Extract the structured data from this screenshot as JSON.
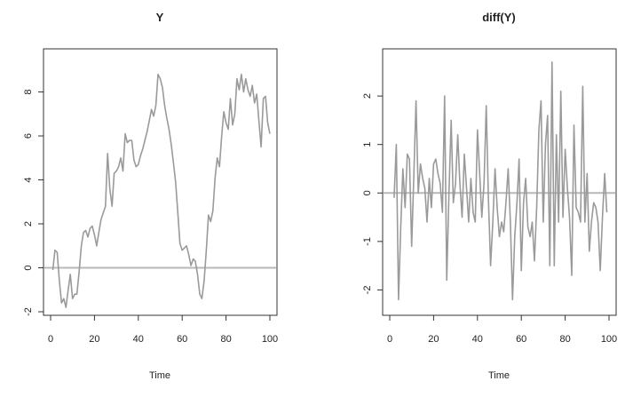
{
  "chart_data": [
    {
      "type": "line",
      "title": "Y",
      "xlabel": "Time",
      "ylabel": "",
      "xlim": [
        0,
        100
      ],
      "ylim": [
        -2,
        9.8
      ],
      "xticks": [
        0,
        20,
        40,
        60,
        80,
        100
      ],
      "yticks": [
        -2,
        0,
        2,
        4,
        6,
        8
      ],
      "reference_line_y": 0,
      "series": [
        {
          "color": "#9a9a9a",
          "x": [
            1,
            2,
            3,
            4,
            5,
            6,
            7,
            8,
            9,
            10,
            11,
            12,
            13,
            14,
            15,
            16,
            17,
            18,
            19,
            20,
            21,
            22,
            23,
            24,
            25,
            26,
            27,
            28,
            29,
            30,
            31,
            32,
            33,
            34,
            35,
            36,
            37,
            38,
            39,
            40,
            41,
            42,
            43,
            44,
            45,
            46,
            47,
            48,
            49,
            50,
            51,
            52,
            53,
            54,
            55,
            56,
            57,
            58,
            59,
            60,
            61,
            62,
            63,
            64,
            65,
            66,
            67,
            68,
            69,
            70,
            71,
            72,
            73,
            74,
            75,
            76,
            77,
            78,
            79,
            80,
            81,
            82,
            83,
            84,
            85,
            86,
            87,
            88,
            89,
            90,
            91,
            92,
            93,
            94,
            95,
            96,
            97,
            98,
            99,
            100
          ],
          "values": [
            -0.1,
            0.8,
            0.7,
            -0.6,
            -1.6,
            -1.4,
            -1.8,
            -1.0,
            -0.3,
            -1.4,
            -1.2,
            -1.2,
            -0.2,
            1.0,
            1.6,
            1.7,
            1.4,
            1.8,
            1.9,
            1.5,
            1.0,
            1.6,
            2.2,
            2.5,
            2.8,
            5.2,
            3.6,
            2.8,
            4.3,
            4.4,
            4.6,
            5.0,
            4.4,
            6.1,
            5.7,
            5.8,
            5.8,
            4.9,
            4.6,
            4.7,
            5.1,
            5.4,
            5.8,
            6.2,
            6.7,
            7.2,
            6.9,
            7.4,
            8.8,
            8.6,
            8.2,
            7.4,
            6.8,
            6.3,
            5.6,
            4.8,
            3.9,
            2.5,
            1.1,
            0.8,
            0.9,
            1.0,
            0.6,
            0.1,
            0.4,
            0.3,
            -0.3,
            -1.2,
            -1.4,
            -0.6,
            0.8,
            2.4,
            2.1,
            2.6,
            4.1,
            5.0,
            4.6,
            6.0,
            7.1,
            6.6,
            6.3,
            7.7,
            6.5,
            7.0,
            8.6,
            8.1,
            8.8,
            8.0,
            8.6,
            8.1,
            7.8,
            8.3,
            7.5,
            7.9,
            6.7,
            5.5,
            7.7,
            7.8,
            6.6,
            6.1
          ]
        }
      ]
    },
    {
      "type": "line",
      "title": "diff(Y)",
      "xlabel": "Time",
      "ylabel": "",
      "xlim": [
        0,
        100
      ],
      "ylim": [
        -2.45,
        2.9
      ],
      "xticks": [
        0,
        20,
        40,
        60,
        80,
        100
      ],
      "yticks": [
        -2,
        -1,
        0,
        1,
        2
      ],
      "reference_line_y": 0,
      "series": [
        {
          "color": "#9a9a9a",
          "x": [
            2,
            3,
            4,
            5,
            6,
            7,
            8,
            9,
            10,
            11,
            12,
            13,
            14,
            15,
            16,
            17,
            18,
            19,
            20,
            21,
            22,
            23,
            24,
            25,
            26,
            27,
            28,
            29,
            30,
            31,
            32,
            33,
            34,
            35,
            36,
            37,
            38,
            39,
            40,
            41,
            42,
            43,
            44,
            45,
            46,
            47,
            48,
            49,
            50,
            51,
            52,
            53,
            54,
            55,
            56,
            57,
            58,
            59,
            60,
            61,
            62,
            63,
            64,
            65,
            66,
            67,
            68,
            69,
            70,
            71,
            72,
            73,
            74,
            75,
            76,
            77,
            78,
            79,
            80,
            81,
            82,
            83,
            84,
            85,
            86,
            87,
            88,
            89,
            90,
            91,
            92,
            93,
            94,
            95,
            96,
            97,
            98,
            99
          ],
          "values": [
            -0.1,
            1.0,
            -2.2,
            -0.7,
            0.5,
            -0.3,
            0.8,
            0.7,
            -1.1,
            0.4,
            1.9,
            0.0,
            0.6,
            0.3,
            0.1,
            -0.6,
            0.3,
            -0.3,
            0.6,
            0.7,
            0.4,
            0.2,
            -0.4,
            2.0,
            -1.8,
            0.0,
            1.5,
            -0.2,
            0.2,
            1.2,
            0.2,
            -0.5,
            0.8,
            0.1,
            -0.6,
            0.3,
            -0.4,
            -0.6,
            1.3,
            0.4,
            -0.5,
            0.2,
            1.8,
            -0.1,
            -1.5,
            -0.6,
            0.5,
            -0.3,
            -0.9,
            -0.6,
            -0.8,
            -0.2,
            0.5,
            -0.6,
            -2.2,
            -0.9,
            -0.2,
            0.7,
            -1.6,
            -0.2,
            0.3,
            -0.7,
            -0.9,
            -0.6,
            -1.4,
            -0.3,
            1.3,
            1.9,
            -0.6,
            1.0,
            1.6,
            -1.5,
            2.7,
            -1.5,
            1.2,
            -0.6,
            2.1,
            -0.5,
            0.9,
            0.1,
            -0.5,
            -1.7,
            1.4,
            -0.3,
            -0.4,
            -0.6,
            2.2,
            -0.6,
            0.4,
            -1.2,
            -0.6,
            -0.2,
            -0.3,
            -0.6,
            -1.6,
            -0.5,
            0.4,
            -0.4
          ]
        }
      ]
    }
  ]
}
